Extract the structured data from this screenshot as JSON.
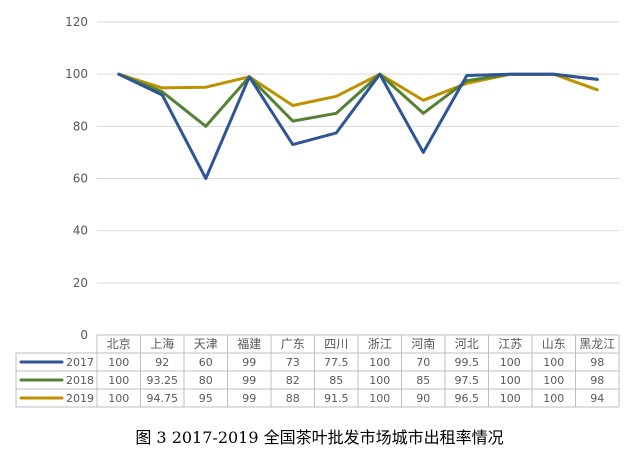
{
  "caption": "图 3 2017-2019 全国茶叶批发市场城市出租率情况",
  "chart_data": {
    "type": "line",
    "title": "",
    "xlabel": "",
    "ylabel": "",
    "ylim": [
      0,
      120
    ],
    "yticks": [
      0,
      20,
      40,
      60,
      80,
      100,
      120
    ],
    "grid": true,
    "legend": "data-table-left",
    "categories": [
      "北京",
      "上海",
      "天津",
      "福建",
      "广东",
      "四川",
      "浙江",
      "河南",
      "河北",
      "江苏",
      "山东",
      "黑龙江"
    ],
    "series": [
      {
        "name": "2017",
        "color": "#2f5597",
        "values": [
          100,
          92,
          60,
          99,
          73,
          77.5,
          100,
          70,
          99.5,
          100,
          100,
          98
        ],
        "labels": [
          "100",
          "92",
          "60",
          "99",
          "73",
          "77.5",
          "100",
          "70",
          "99.5",
          "100",
          "100",
          "98"
        ]
      },
      {
        "name": "2018",
        "color": "#548235",
        "values": [
          100,
          93.25,
          80,
          99,
          82,
          85,
          100,
          85,
          97.5,
          100,
          100,
          98
        ],
        "labels": [
          "100",
          "93.25",
          "80",
          "99",
          "82",
          "85",
          "100",
          "85",
          "97.5",
          "100",
          "100",
          "98"
        ]
      },
      {
        "name": "2019",
        "color": "#bf9000",
        "values": [
          100,
          94.75,
          95,
          99,
          88,
          91.5,
          100,
          90,
          96.5,
          100,
          100,
          94
        ],
        "labels": [
          "100",
          "94.75",
          "95",
          "99",
          "88",
          "91.5",
          "100",
          "90",
          "96.5",
          "100",
          "100",
          "94"
        ]
      }
    ]
  }
}
